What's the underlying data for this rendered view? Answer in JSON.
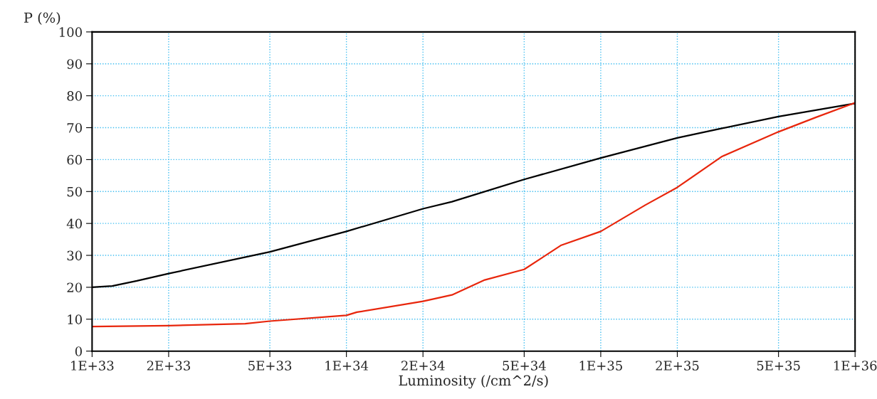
{
  "chart_data": {
    "type": "line",
    "xlabel": "Luminosity (/cm^2/s)",
    "ylabel": "P (%)",
    "log": "x",
    "xlim": [
      1e+33,
      1e+36
    ],
    "ylim": [
      0,
      100
    ],
    "xticks": [
      {
        "value": 1e+33,
        "label": "1E+33"
      },
      {
        "value": 2e+33,
        "label": "2E+33"
      },
      {
        "value": 5e+33,
        "label": "5E+33"
      },
      {
        "value": 1e+34,
        "label": "1E+34"
      },
      {
        "value": 2e+34,
        "label": "2E+34"
      },
      {
        "value": 5e+34,
        "label": "5E+34"
      },
      {
        "value": 1e+35,
        "label": "1E+35"
      },
      {
        "value": 2e+35,
        "label": "2E+35"
      },
      {
        "value": 5e+35,
        "label": "5E+35"
      },
      {
        "value": 1e+36,
        "label": "1E+36"
      }
    ],
    "yticks": [
      0,
      10,
      20,
      30,
      40,
      50,
      60,
      70,
      80,
      90,
      100
    ],
    "grid": true,
    "line_style": "solid",
    "marker": "none",
    "series": [
      {
        "color": "#000000",
        "x": [
          1e+33,
          1.2e+33,
          1.5e+33,
          2e+33,
          5e+33,
          1e+34,
          2e+34,
          2.6e+34,
          5e+34,
          1e+35,
          2e+35,
          3e+35,
          5e+35,
          1e+36
        ],
        "values": [
          20.0,
          20.4,
          22.0,
          24.3,
          31.1,
          37.5,
          44.6,
          46.8,
          53.8,
          60.5,
          66.8,
          69.8,
          73.5,
          77.6
        ]
      },
      {
        "color": "#e8260c",
        "x": [
          1e+33,
          2e+33,
          4e+33,
          5e+33,
          1e+34,
          1.1e+34,
          2e+34,
          2.6e+34,
          3.5e+34,
          5e+34,
          7e+34,
          1e+35,
          1.5e+35,
          2e+35,
          3e+35,
          5e+35,
          7e+35,
          1e+36
        ],
        "values": [
          7.7,
          8.0,
          8.6,
          9.4,
          11.2,
          12.2,
          15.6,
          17.6,
          22.3,
          25.6,
          33.2,
          37.5,
          45.8,
          51.3,
          61.0,
          68.7,
          73.2,
          77.8
        ]
      }
    ]
  }
}
